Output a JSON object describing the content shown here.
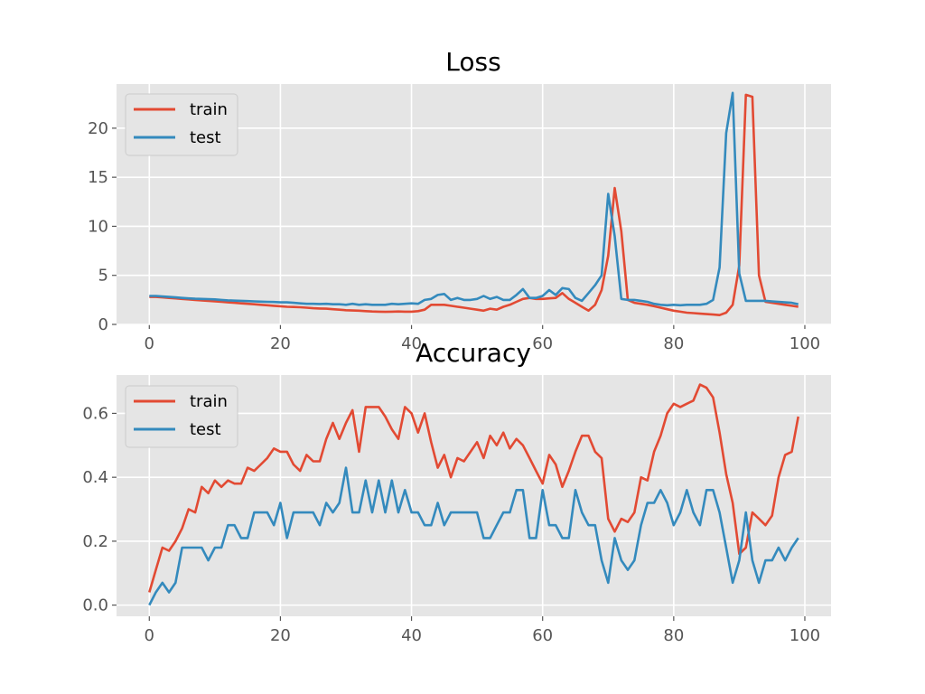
{
  "colors": {
    "train": "#e24a33",
    "test": "#348abd",
    "panel": "#e5e5e5",
    "grid": "#ffffff"
  },
  "chart_data": [
    {
      "type": "line",
      "title": "Loss",
      "xlabel": "",
      "ylabel": "",
      "xlim": [
        -5,
        104
      ],
      "ylim": [
        0,
        24.5
      ],
      "xticks": [
        0,
        20,
        40,
        60,
        80,
        100
      ],
      "yticks": [
        0,
        5,
        10,
        15,
        20
      ],
      "grid": true,
      "legend": "upper-left",
      "series": [
        {
          "name": "train",
          "color": "#e24a33",
          "values": [
            2.8,
            2.8,
            2.75,
            2.7,
            2.65,
            2.6,
            2.55,
            2.5,
            2.45,
            2.4,
            2.35,
            2.3,
            2.25,
            2.2,
            2.15,
            2.1,
            2.05,
            2.0,
            1.95,
            1.9,
            1.85,
            1.8,
            1.78,
            1.75,
            1.7,
            1.65,
            1.62,
            1.6,
            1.55,
            1.5,
            1.45,
            1.42,
            1.4,
            1.35,
            1.32,
            1.3,
            1.28,
            1.3,
            1.32,
            1.3,
            1.3,
            1.35,
            1.5,
            2.0,
            2.0,
            2.0,
            1.9,
            1.8,
            1.7,
            1.6,
            1.5,
            1.4,
            1.6,
            1.5,
            1.8,
            2.0,
            2.3,
            2.6,
            2.7,
            2.6,
            2.6,
            2.65,
            2.7,
            3.2,
            2.6,
            2.2,
            1.8,
            1.4,
            2.0,
            3.5,
            7.0,
            13.9,
            9.5,
            2.5,
            2.2,
            2.1,
            2.0,
            1.85,
            1.7,
            1.55,
            1.4,
            1.3,
            1.2,
            1.15,
            1.1,
            1.05,
            1.0,
            0.95,
            1.2,
            2.0,
            6.0,
            23.4,
            23.2,
            5.0,
            2.3,
            2.2,
            2.1,
            2.0,
            1.9,
            1.8
          ]
        },
        {
          "name": "test",
          "color": "#348abd",
          "values": [
            2.9,
            2.9,
            2.85,
            2.8,
            2.75,
            2.7,
            2.65,
            2.62,
            2.6,
            2.58,
            2.55,
            2.5,
            2.45,
            2.42,
            2.4,
            2.38,
            2.35,
            2.32,
            2.3,
            2.28,
            2.25,
            2.25,
            2.2,
            2.15,
            2.1,
            2.1,
            2.08,
            2.1,
            2.05,
            2.05,
            2.0,
            2.1,
            2.0,
            2.05,
            2.0,
            2.0,
            2.0,
            2.1,
            2.05,
            2.1,
            2.15,
            2.1,
            2.5,
            2.6,
            3.0,
            3.1,
            2.5,
            2.7,
            2.5,
            2.5,
            2.6,
            2.9,
            2.6,
            2.8,
            2.5,
            2.5,
            3.0,
            3.6,
            2.7,
            2.7,
            2.9,
            3.5,
            3.0,
            3.7,
            3.6,
            2.7,
            2.4,
            3.2,
            4.0,
            5.0,
            13.3,
            9.0,
            2.6,
            2.5,
            2.5,
            2.4,
            2.3,
            2.1,
            2.0,
            1.95,
            2.0,
            1.95,
            2.0,
            2.0,
            2.0,
            2.1,
            2.5,
            5.8,
            19.5,
            23.6,
            5.2,
            2.4,
            2.4,
            2.4,
            2.4,
            2.35,
            2.3,
            2.25,
            2.2,
            2.05
          ]
        }
      ]
    },
    {
      "type": "line",
      "title": "Accuracy",
      "xlabel": "",
      "ylabel": "",
      "xlim": [
        -5,
        104
      ],
      "ylim": [
        -0.035,
        0.72
      ],
      "xticks": [
        0,
        20,
        40,
        60,
        80,
        100
      ],
      "yticks": [
        0.0,
        0.2,
        0.4,
        0.6
      ],
      "tick_labels": [
        "0.0",
        "0.2",
        "0.4",
        "0.6"
      ],
      "grid": true,
      "legend": "upper-left",
      "series": [
        {
          "name": "train",
          "color": "#e24a33",
          "values": [
            0.04,
            0.11,
            0.18,
            0.17,
            0.2,
            0.24,
            0.3,
            0.29,
            0.37,
            0.35,
            0.39,
            0.37,
            0.39,
            0.38,
            0.38,
            0.43,
            0.42,
            0.44,
            0.46,
            0.49,
            0.48,
            0.48,
            0.44,
            0.42,
            0.47,
            0.45,
            0.45,
            0.52,
            0.57,
            0.52,
            0.57,
            0.61,
            0.48,
            0.62,
            0.62,
            0.62,
            0.59,
            0.55,
            0.52,
            0.62,
            0.6,
            0.54,
            0.6,
            0.51,
            0.43,
            0.47,
            0.4,
            0.46,
            0.45,
            0.48,
            0.51,
            0.46,
            0.53,
            0.5,
            0.54,
            0.49,
            0.52,
            0.5,
            0.46,
            0.42,
            0.38,
            0.47,
            0.44,
            0.37,
            0.42,
            0.48,
            0.53,
            0.53,
            0.48,
            0.46,
            0.27,
            0.23,
            0.27,
            0.26,
            0.29,
            0.4,
            0.39,
            0.48,
            0.53,
            0.6,
            0.63,
            0.62,
            0.63,
            0.64,
            0.69,
            0.68,
            0.65,
            0.54,
            0.41,
            0.32,
            0.16,
            0.18,
            0.29,
            0.27,
            0.25,
            0.28,
            0.4,
            0.47,
            0.48,
            0.59
          ]
        },
        {
          "name": "test",
          "color": "#348abd",
          "values": [
            0.0,
            0.04,
            0.07,
            0.04,
            0.07,
            0.18,
            0.18,
            0.18,
            0.18,
            0.14,
            0.18,
            0.18,
            0.25,
            0.25,
            0.21,
            0.21,
            0.29,
            0.29,
            0.29,
            0.25,
            0.32,
            0.21,
            0.29,
            0.29,
            0.29,
            0.29,
            0.25,
            0.32,
            0.29,
            0.32,
            0.43,
            0.29,
            0.29,
            0.39,
            0.29,
            0.39,
            0.29,
            0.39,
            0.29,
            0.36,
            0.29,
            0.29,
            0.25,
            0.25,
            0.32,
            0.25,
            0.29,
            0.29,
            0.29,
            0.29,
            0.29,
            0.21,
            0.21,
            0.25,
            0.29,
            0.29,
            0.36,
            0.36,
            0.21,
            0.21,
            0.36,
            0.25,
            0.25,
            0.21,
            0.21,
            0.36,
            0.29,
            0.25,
            0.25,
            0.14,
            0.07,
            0.21,
            0.14,
            0.11,
            0.14,
            0.25,
            0.32,
            0.32,
            0.36,
            0.32,
            0.25,
            0.29,
            0.36,
            0.29,
            0.25,
            0.36,
            0.36,
            0.29,
            0.18,
            0.07,
            0.14,
            0.29,
            0.14,
            0.07,
            0.14,
            0.14,
            0.18,
            0.14,
            0.18,
            0.21
          ]
        }
      ]
    }
  ]
}
